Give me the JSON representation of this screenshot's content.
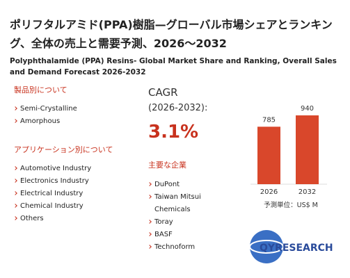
{
  "header": {
    "title": "ポリフタルアミド(PPA)樹脂—グローバル市場シェアとランキング、全体の売上と需要予測、2026〜2032",
    "subtitle": "Polyphthalamide (PPA) Resins- Global Market Share and Ranking, Overall Sales and Demand Forecast 2026-2032"
  },
  "product_section": {
    "heading": "製品別について",
    "items": [
      "Semi-Crystalline",
      "Amorphous"
    ]
  },
  "application_section": {
    "heading": "アプリケーション別について",
    "items": [
      "Automotive Industry",
      "Electronics Industry",
      "Electrical Industry",
      "Chemical Industry",
      "Others"
    ]
  },
  "cagr": {
    "label": "CAGR",
    "period": "(2026-2032):",
    "value": "3.1%"
  },
  "companies": {
    "heading": "主要な企業",
    "items": [
      "DuPont",
      "Taiwan Mitsui Chemicals",
      "Toray",
      "BASF",
      "Technoform"
    ]
  },
  "chart": {
    "type": "bar",
    "categories": [
      "2026",
      "2032"
    ],
    "values": [
      785,
      940
    ],
    "color": "#d9472b",
    "unit": "予測単位：US$ M"
  },
  "logo": "QYRESEARCH"
}
